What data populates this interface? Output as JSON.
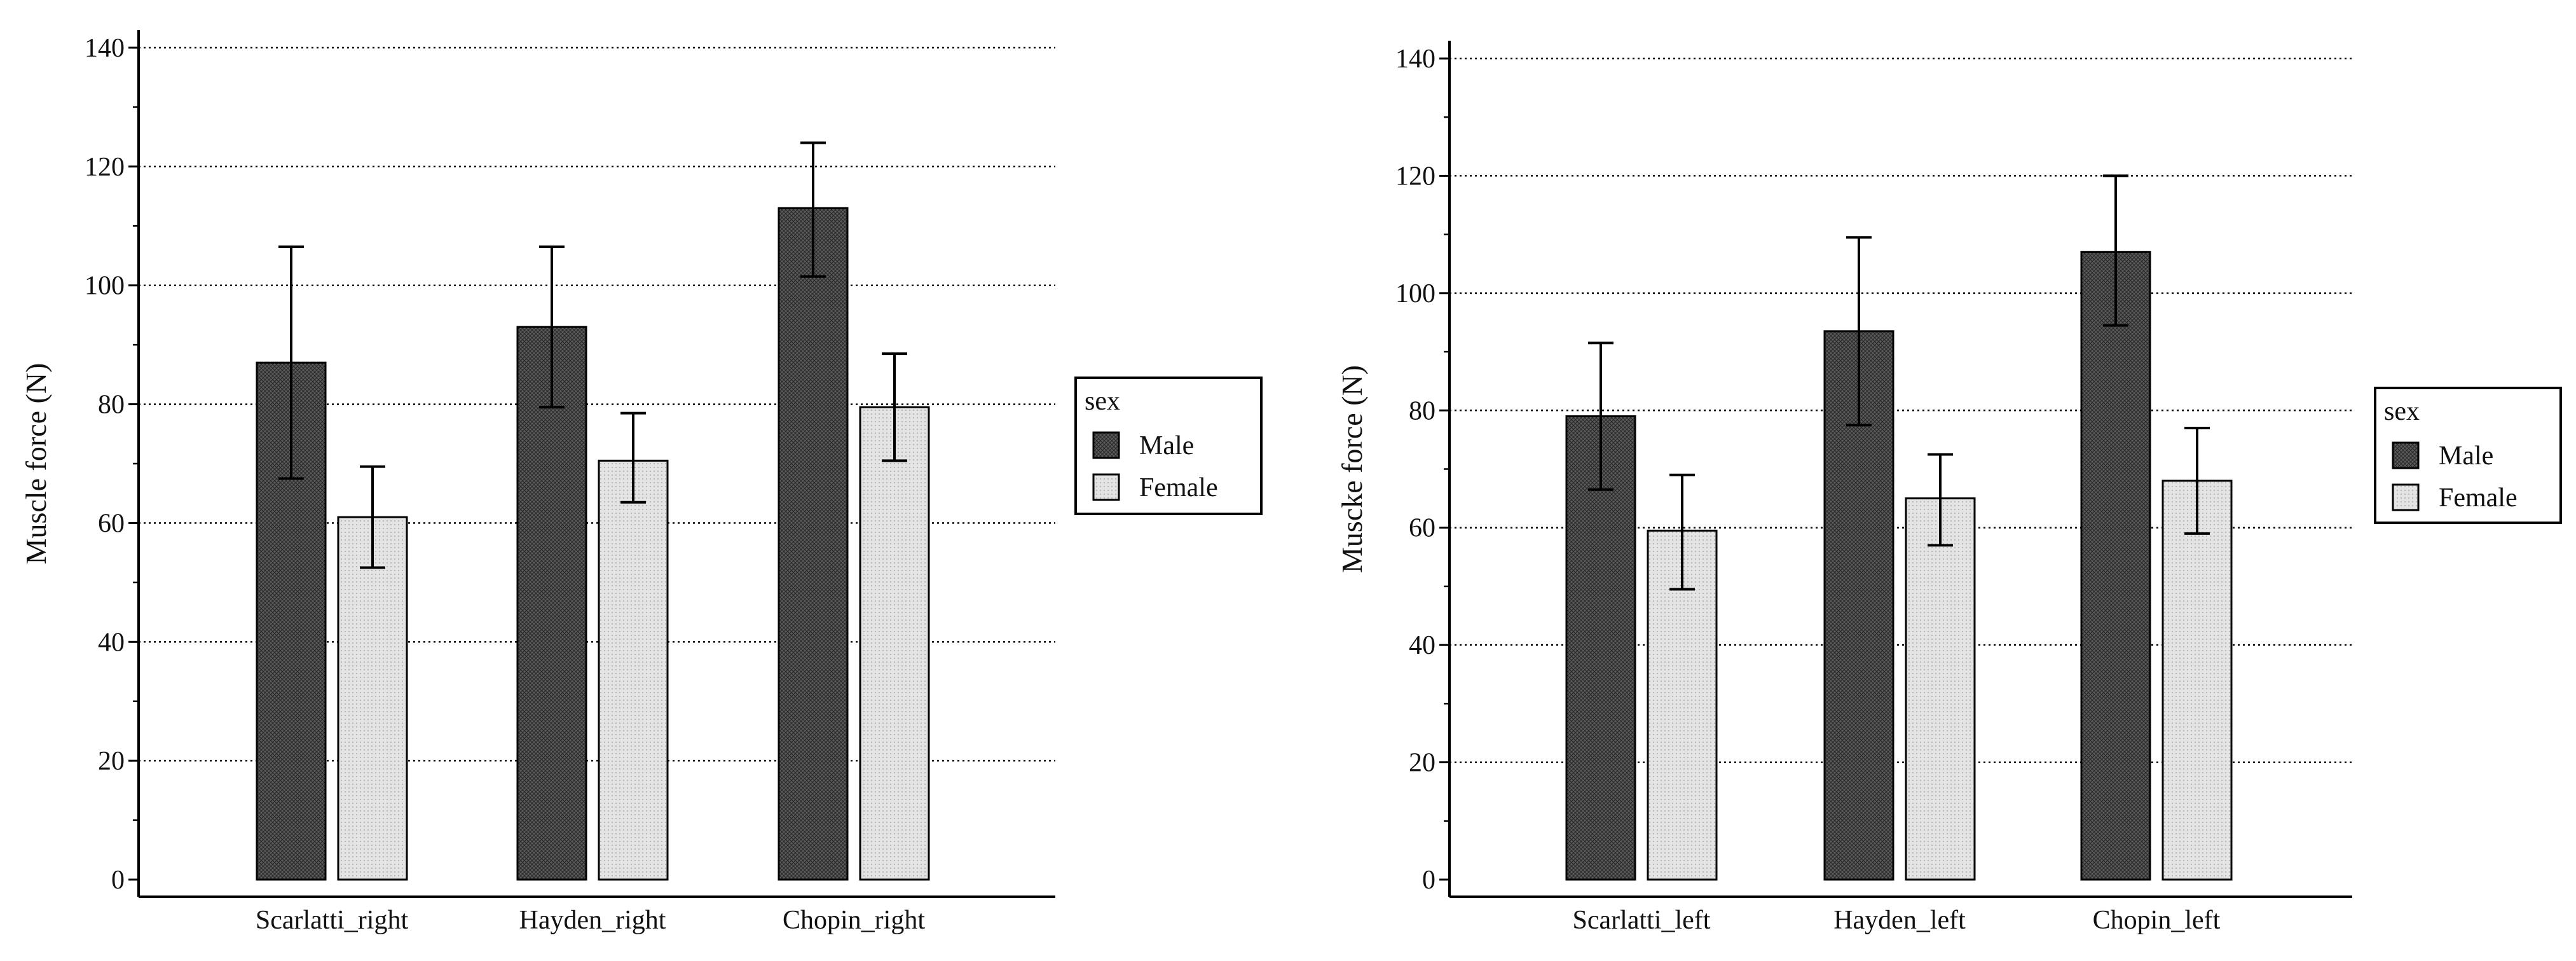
{
  "colors": {
    "male_fill": "#5c5c5c",
    "female_fill": "#e4e4e4",
    "axis": "#000000",
    "grid": "#000000"
  },
  "chart_data": [
    {
      "id": "right",
      "type": "bar",
      "ylabel": "Muscle force (N)",
      "ylim": [
        0,
        140
      ],
      "ytick_step": 20,
      "yminor_step": 10,
      "grid": true,
      "legend_position": "right",
      "legend_title": "sex",
      "categories": [
        "Scarlatti_right",
        "Hayden_right",
        "Chopin_right"
      ],
      "series": [
        {
          "name": "Male",
          "values": [
            87,
            93,
            113
          ],
          "err_low": [
            67.5,
            79.5,
            101.5
          ],
          "err_high": [
            106.5,
            106.5,
            124
          ]
        },
        {
          "name": "Female",
          "values": [
            61,
            70.5,
            79.5
          ],
          "err_low": [
            52.5,
            63.5,
            70.5
          ],
          "err_high": [
            69.5,
            78.5,
            88.5
          ]
        }
      ]
    },
    {
      "id": "left",
      "type": "bar",
      "ylabel": "Muscke force (N)",
      "ylim": [
        0,
        140
      ],
      "ytick_step": 20,
      "yminor_step": 10,
      "grid": true,
      "legend_position": "right",
      "legend_title": "sex",
      "categories": [
        "Scarlatti_left",
        "Hayden_left",
        "Chopin_left"
      ],
      "series": [
        {
          "name": "Male",
          "values": [
            79,
            93.5,
            107
          ],
          "err_low": [
            66.5,
            77.5,
            94.5
          ],
          "err_high": [
            91.5,
            109.5,
            120
          ]
        },
        {
          "name": "Female",
          "values": [
            59.5,
            65,
            68
          ],
          "err_low": [
            49.5,
            57,
            59
          ],
          "err_high": [
            69,
            72.5,
            77
          ]
        }
      ]
    }
  ]
}
